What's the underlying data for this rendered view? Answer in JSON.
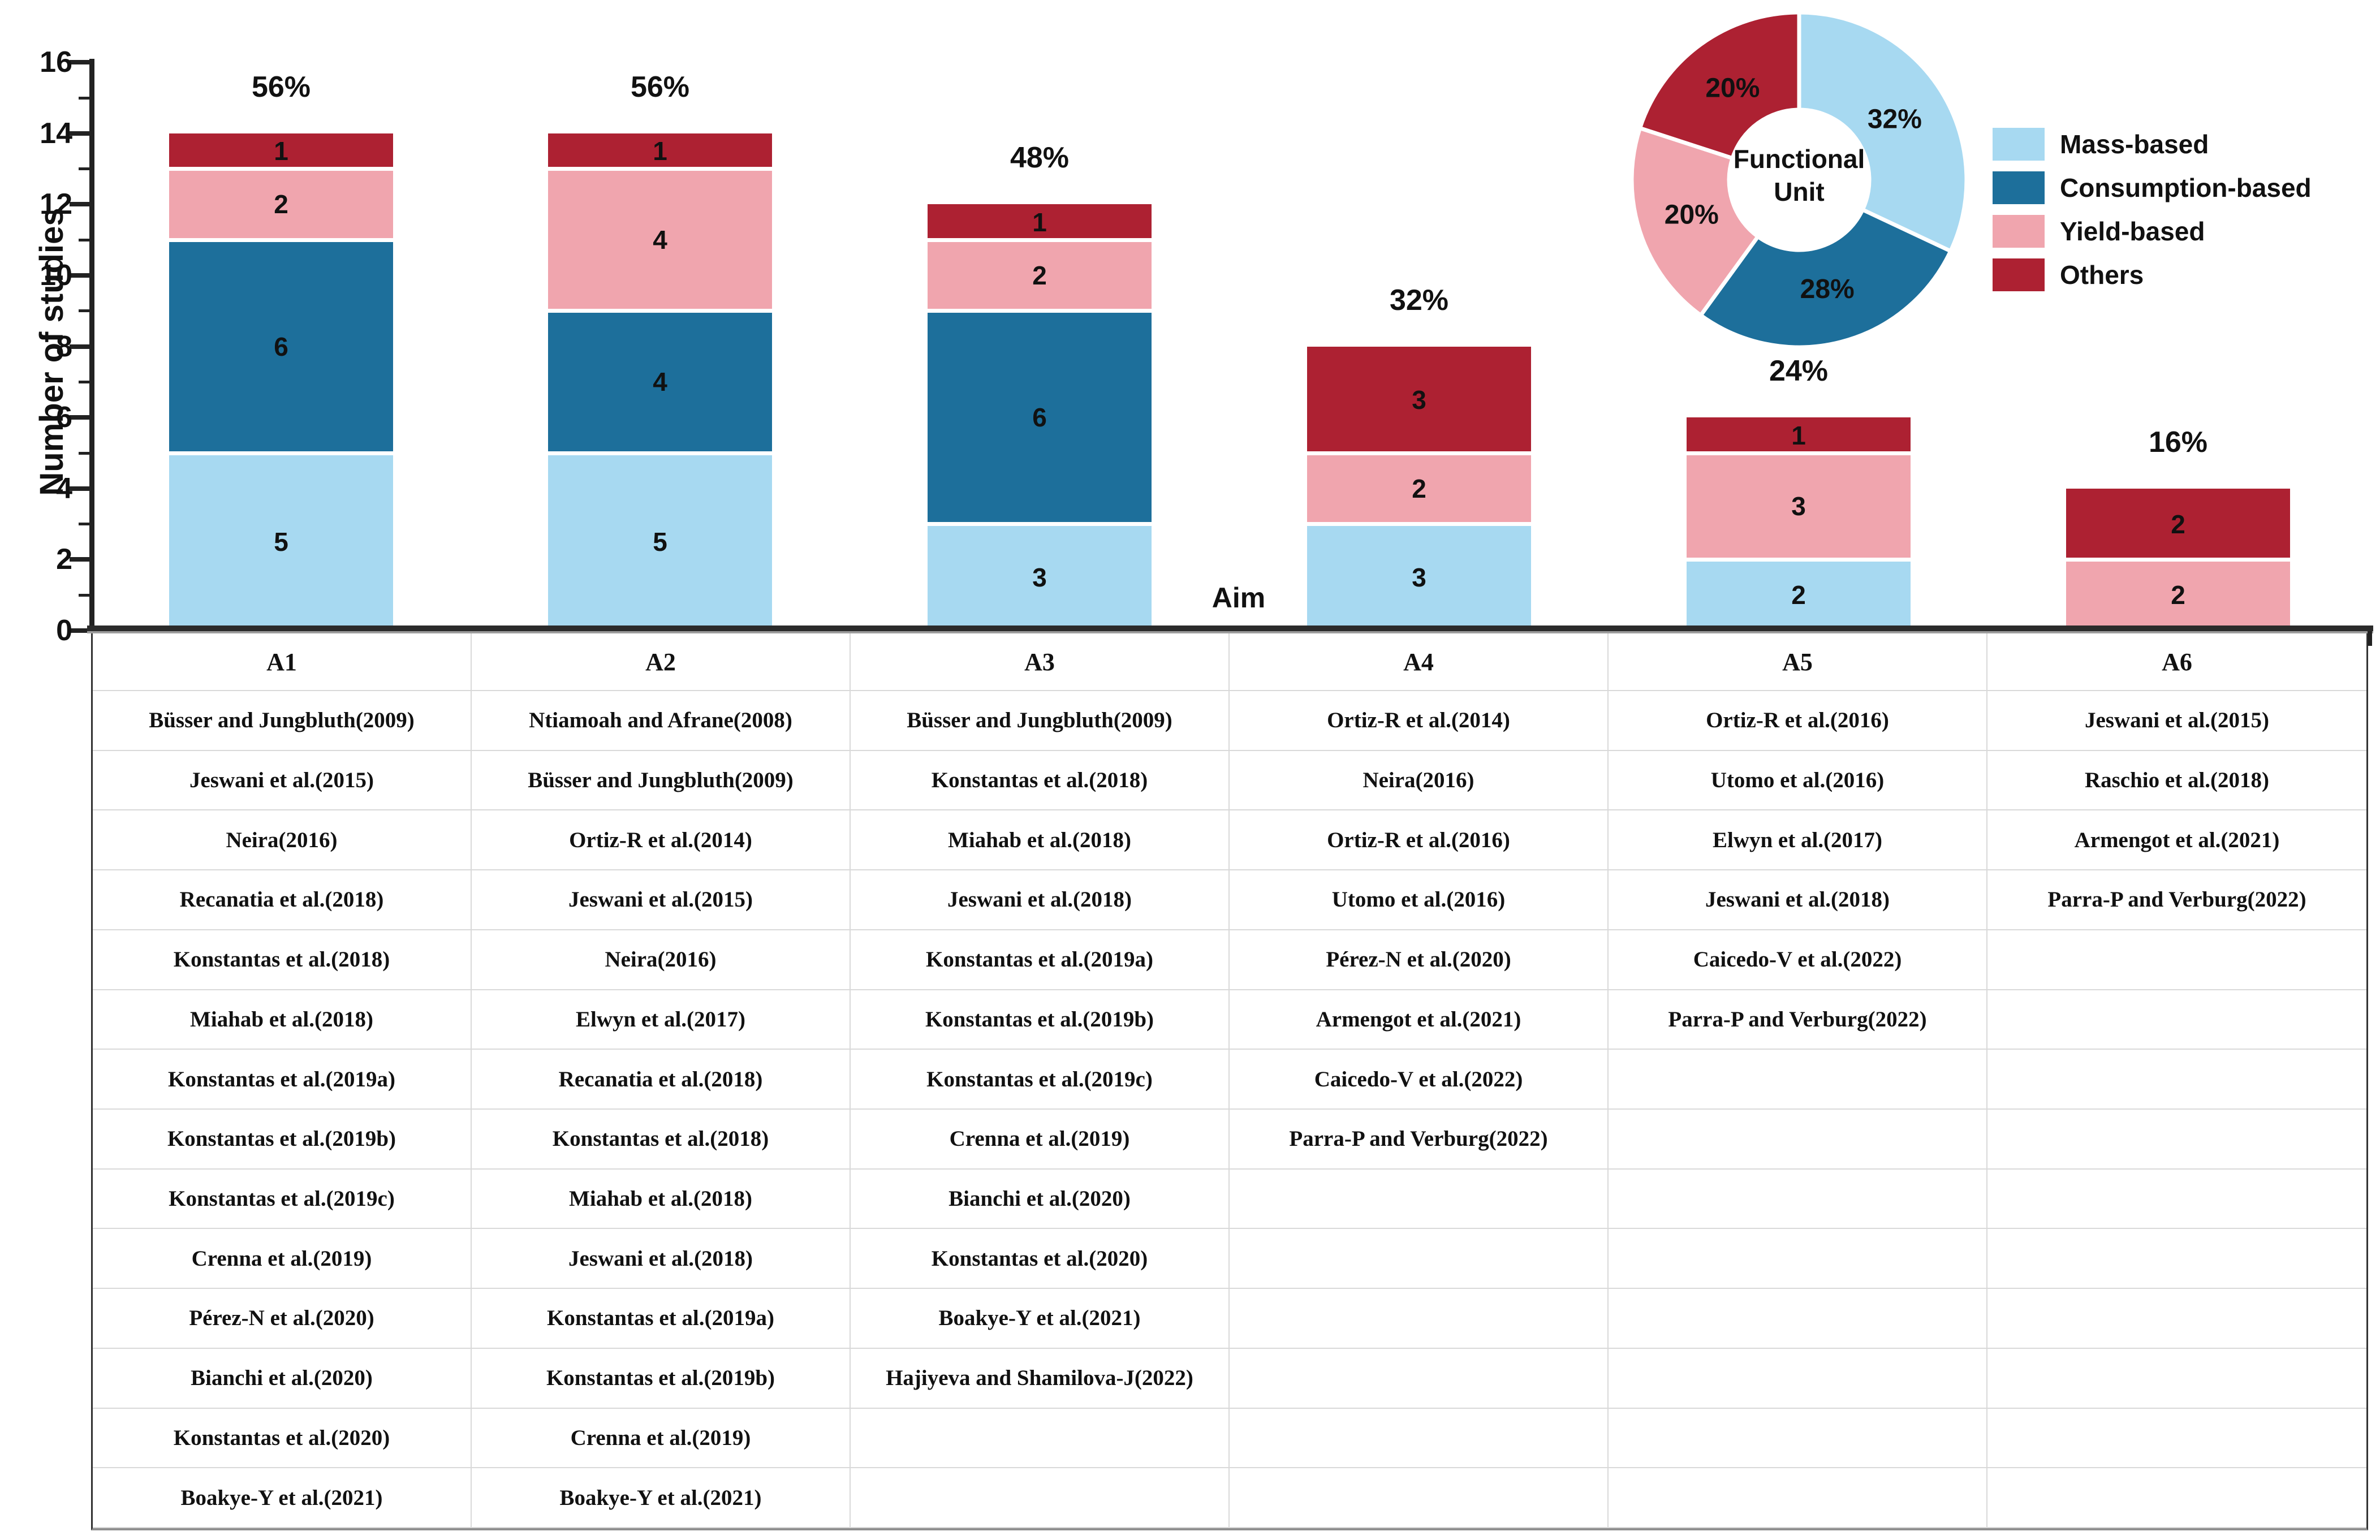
{
  "chart_data": {
    "type": "bar",
    "subtype": "stacked-bar-with-donut-inset",
    "title": "",
    "xlabel": "Aim",
    "ylabel": "Number of studies",
    "ylim": [
      0,
      16
    ],
    "yticks": [
      0,
      2,
      4,
      6,
      8,
      10,
      12,
      14,
      16
    ],
    "grid": false,
    "categories": [
      "A1",
      "A2",
      "A3",
      "A4",
      "A5",
      "A6"
    ],
    "bar_totals": [
      14,
      14,
      12,
      8,
      6,
      4
    ],
    "percent_labels": [
      "56%",
      "56%",
      "48%",
      "32%",
      "24%",
      "16%"
    ],
    "series": [
      {
        "name": "Mass-based",
        "color": "#a7d9f1",
        "values": [
          5,
          5,
          3,
          3,
          2,
          0
        ]
      },
      {
        "name": "Consumption-based",
        "color": "#1d6f9b",
        "values": [
          6,
          4,
          6,
          0,
          0,
          0
        ]
      },
      {
        "name": "Yield-based",
        "color": "#f0a5ae",
        "values": [
          2,
          4,
          2,
          2,
          3,
          2
        ]
      },
      {
        "name": "Others",
        "color": "#ad2132",
        "values": [
          1,
          1,
          1,
          3,
          1,
          2
        ]
      }
    ],
    "legend": {
      "position": "top-right",
      "entries": [
        "Mass-based",
        "Consumption-based",
        "Yield-based",
        "Others"
      ]
    },
    "pie": {
      "type": "donut",
      "title": "Functional\nUnit",
      "labels": [
        "Mass-based",
        "Consumption-based",
        "Yield-based",
        "Others"
      ],
      "values": [
        32,
        28,
        20,
        20
      ],
      "value_labels": [
        "32%",
        "28%",
        "20%",
        "20%"
      ],
      "colors": [
        "#a7d9f1",
        "#1d6f9b",
        "#f0a5ae",
        "#ad2132"
      ],
      "start_angle_deg": 0,
      "direction": "clockwise"
    }
  },
  "table": {
    "headers": [
      "A1",
      "A2",
      "A3",
      "A4",
      "A5",
      "A6"
    ],
    "rows": [
      [
        "Büsser and Jungbluth(2009)",
        "Ntiamoah and Afrane(2008)",
        "Büsser and Jungbluth(2009)",
        "Ortiz-R et al.(2014)",
        "Ortiz-R et al.(2016)",
        "Jeswani et al.(2015)"
      ],
      [
        "Jeswani et al.(2015)",
        "Büsser and Jungbluth(2009)",
        "Konstantas et al.(2018)",
        "Neira(2016)",
        "Utomo et al.(2016)",
        "Raschio et al.(2018)"
      ],
      [
        "Neira(2016)",
        "Ortiz-R et al.(2014)",
        "Miahab et al.(2018)",
        "Ortiz-R et al.(2016)",
        "Elwyn et al.(2017)",
        "Armengot et al.(2021)"
      ],
      [
        "Recanatia et al.(2018)",
        "Jeswani et al.(2015)",
        "Jeswani et al.(2018)",
        "Utomo et al.(2016)",
        "Jeswani et al.(2018)",
        "Parra-P and Verburg(2022)"
      ],
      [
        "Konstantas et al.(2018)",
        "Neira(2016)",
        "Konstantas et al.(2019a)",
        "Pérez-N et al.(2020)",
        "Caicedo-V et al.(2022)",
        ""
      ],
      [
        "Miahab et al.(2018)",
        "Elwyn et al.(2017)",
        "Konstantas et al.(2019b)",
        "Armengot et al.(2021)",
        "Parra-P and Verburg(2022)",
        ""
      ],
      [
        "Konstantas et al.(2019a)",
        "Recanatia et al.(2018)",
        "Konstantas et al.(2019c)",
        "Caicedo-V et al.(2022)",
        "",
        ""
      ],
      [
        "Konstantas et al.(2019b)",
        "Konstantas et al.(2018)",
        "Crenna et al.(2019)",
        "Parra-P and Verburg(2022)",
        "",
        ""
      ],
      [
        "Konstantas et al.(2019c)",
        "Miahab et al.(2018)",
        "Bianchi et al.(2020)",
        "",
        "",
        ""
      ],
      [
        "Crenna et al.(2019)",
        "Jeswani et al.(2018)",
        "Konstantas et al.(2020)",
        "",
        "",
        ""
      ],
      [
        "Pérez-N et al.(2020)",
        "Konstantas et al.(2019a)",
        "Boakye-Y et al.(2021)",
        "",
        "",
        ""
      ],
      [
        "Bianchi et al.(2020)",
        "Konstantas et al.(2019b)",
        "Hajiyeva and Shamilova-J(2022)",
        "",
        "",
        ""
      ],
      [
        "Konstantas et al.(2020)",
        "Crenna et al.(2019)",
        "",
        "",
        "",
        ""
      ],
      [
        "Boakye-Y et al.(2021)",
        "Boakye-Y et al.(2021)",
        "",
        "",
        "",
        ""
      ]
    ]
  }
}
